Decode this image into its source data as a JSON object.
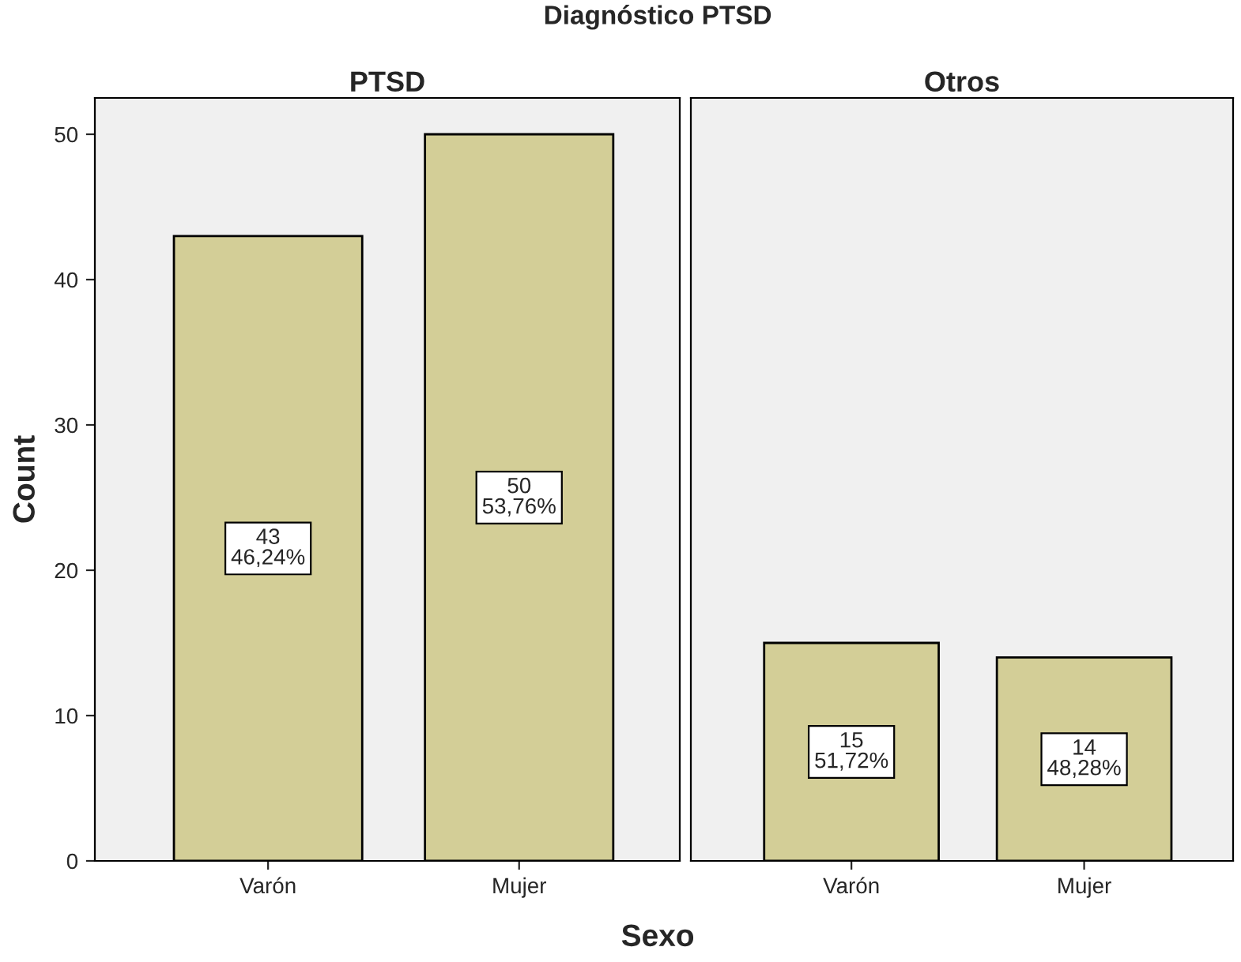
{
  "chart_data": [
    {
      "type": "bar",
      "title": "PTSD",
      "ylabel": "Count",
      "xlabel": "Sexo",
      "annotations": [
        "Diagnóstico PTSD"
      ],
      "categories": [
        "Varón",
        "Mujer"
      ],
      "values": [
        43,
        50
      ],
      "value_labels": [
        "43\n46,24%",
        "50\n53,76%"
      ],
      "color": "#d3ce97",
      "ylim": [
        0,
        52.5
      ],
      "yticks": [
        0,
        10,
        20,
        30,
        40,
        50
      ],
      "grid": false
    },
    {
      "type": "bar",
      "title": "Otros",
      "categories": [
        "Varón",
        "Mujer"
      ],
      "values": [
        15,
        14
      ],
      "value_labels": [
        "15\n51,72%",
        "14\n48,28%"
      ],
      "color": "#d3ce97",
      "ylim": [
        0,
        52.5
      ],
      "yticks": [
        0,
        10,
        20,
        30,
        40,
        50
      ],
      "tick_labels": "x",
      "grid": false
    }
  ]
}
